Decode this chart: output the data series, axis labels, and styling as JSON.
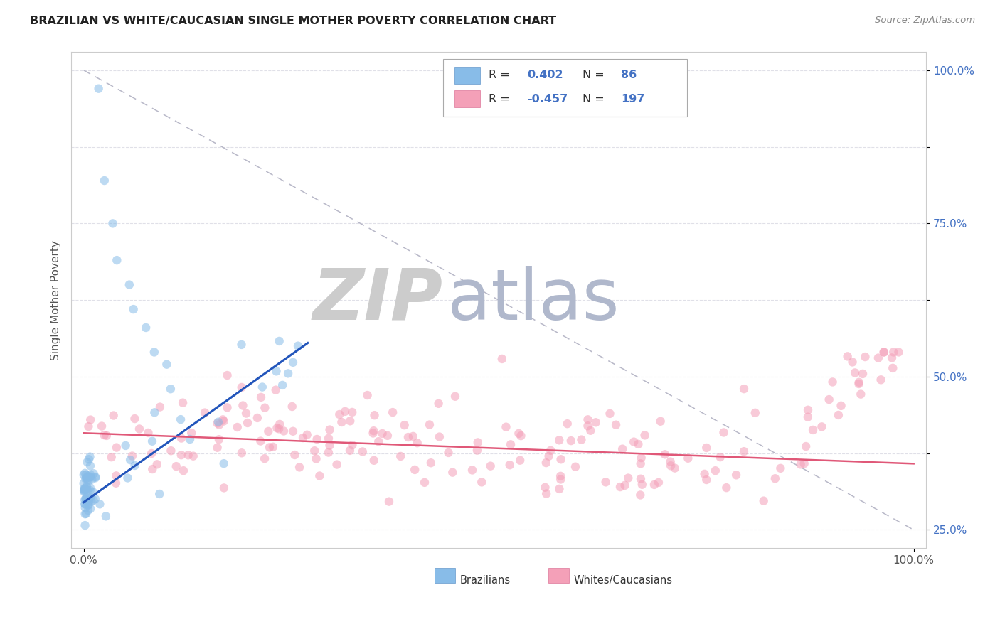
{
  "title": "BRAZILIAN VS WHITE/CAUCASIAN SINGLE MOTHER POVERTY CORRELATION CHART",
  "source": "Source: ZipAtlas.com",
  "ylabel": "Single Mother Poverty",
  "ytick_vals": [
    0.25,
    0.375,
    0.5,
    0.625,
    0.75,
    0.875,
    1.0
  ],
  "ytick_labels": [
    "25.0%",
    "",
    "50.0%",
    "",
    "75.0%",
    "",
    "100.0%"
  ],
  "blue_R": "0.402",
  "blue_N": "86",
  "pink_R": "-0.457",
  "pink_N": "197",
  "blue_label": "Brazilians",
  "pink_label": "Whites/Caucasians",
  "blue_scatter_color": "#88bce8",
  "pink_scatter_color": "#f4a0b8",
  "blue_line_color": "#2255bb",
  "pink_line_color": "#e05878",
  "ref_line_color": "#b8b8c8",
  "grid_color": "#e0e0e8",
  "bg_color": "#ffffff",
  "title_color": "#222222",
  "source_color": "#888888",
  "watermark_left_color": "#c8cce0",
  "watermark_right_color": "#b0b8d0",
  "scatter_alpha": 0.55,
  "scatter_size": 80,
  "legend_box_color": "#4472c4",
  "legend_label_color": "#333333",
  "xmin": 0.0,
  "xmax": 1.0,
  "ymin": 0.22,
  "ymax": 1.03,
  "blue_line_x0": 0.0,
  "blue_line_x1": 0.27,
  "blue_line_y0": 0.295,
  "blue_line_y1": 0.555,
  "pink_line_x0": 0.0,
  "pink_line_x1": 1.0,
  "pink_line_y0": 0.408,
  "pink_line_y1": 0.358,
  "ref_line_x0": 0.0,
  "ref_line_x1": 1.0,
  "ref_line_y0": 1.0,
  "ref_line_y1": 0.25
}
